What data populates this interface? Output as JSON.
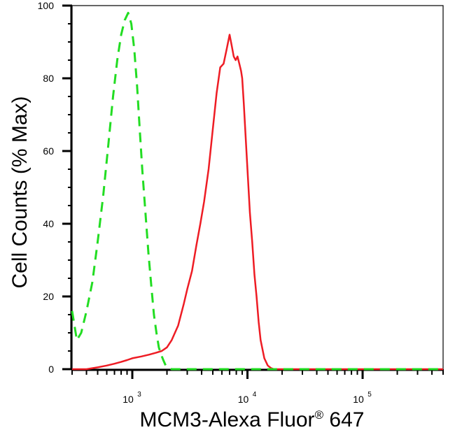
{
  "chart_data": {
    "type": "line",
    "xlabel_prefix": "MCM3-Alexa Fluor",
    "xlabel_sup": "®",
    "xlabel_suffix": " 647",
    "ylabel": "Cell Counts (% Max)",
    "xscale": "log",
    "xlim": [
      300,
      500000
    ],
    "ylim": [
      0,
      100
    ],
    "y_ticks": [
      0,
      20,
      40,
      60,
      80,
      100
    ],
    "y_tick_labels": [
      "0",
      "20",
      "40",
      "60",
      "80",
      "100"
    ],
    "x_ticks": [
      1000,
      10000,
      100000
    ],
    "x_tick_labels": [
      {
        "base": "10",
        "exp": "3"
      },
      {
        "base": "10",
        "exp": "4"
      },
      {
        "base": "10",
        "exp": "5"
      }
    ],
    "grid": false,
    "legend": "none",
    "series": [
      {
        "color": "#ee1c24",
        "style": "solid",
        "x": [
          300,
          400,
          500,
          600,
          700,
          800,
          900,
          1000,
          1200,
          1400,
          1600,
          1800,
          2000,
          2200,
          2500,
          2800,
          3000,
          3300,
          3600,
          3900,
          4200,
          4600,
          5000,
          5400,
          5800,
          6200,
          6600,
          7000,
          7300,
          7600,
          7900,
          8200,
          8500,
          8800,
          9000,
          9300,
          9600,
          10000,
          10500,
          11000,
          11500,
          12000,
          12500,
          13000,
          14000,
          15000,
          16000,
          17000,
          18000,
          20000,
          22000,
          25000,
          30000,
          50000,
          100000,
          500000
        ],
        "y": [
          0,
          0,
          0.5,
          1,
          1.5,
          2,
          2.5,
          3,
          3.5,
          4,
          4.5,
          5,
          6,
          8,
          12,
          18,
          22,
          27,
          34,
          40,
          46,
          55,
          66,
          76,
          83,
          84,
          88,
          92,
          89,
          86,
          85,
          86,
          84,
          82,
          80,
          73,
          65,
          55,
          43,
          35,
          26,
          20,
          13,
          8,
          3,
          1,
          0.3,
          0,
          0,
          0,
          0,
          0,
          0,
          0,
          0,
          0
        ]
      },
      {
        "color": "#22dd22",
        "style": "dashed",
        "x": [
          300,
          330,
          360,
          400,
          450,
          500,
          560,
          620,
          680,
          740,
          800,
          860,
          920,
          980,
          1040,
          1100,
          1160,
          1220,
          1300,
          1380,
          1460,
          1540,
          1620,
          1700,
          1780,
          1860,
          1950,
          2050,
          2200,
          2500,
          3000,
          5000,
          10000,
          50000,
          500000
        ],
        "y": [
          16,
          8,
          10,
          16,
          24,
          35,
          48,
          62,
          75,
          85,
          92,
          96,
          98,
          95,
          88,
          78,
          66,
          55,
          43,
          32,
          23,
          15,
          10,
          6,
          4,
          2.5,
          1,
          0.5,
          0,
          0,
          0,
          0,
          0,
          0,
          0
        ]
      }
    ]
  }
}
